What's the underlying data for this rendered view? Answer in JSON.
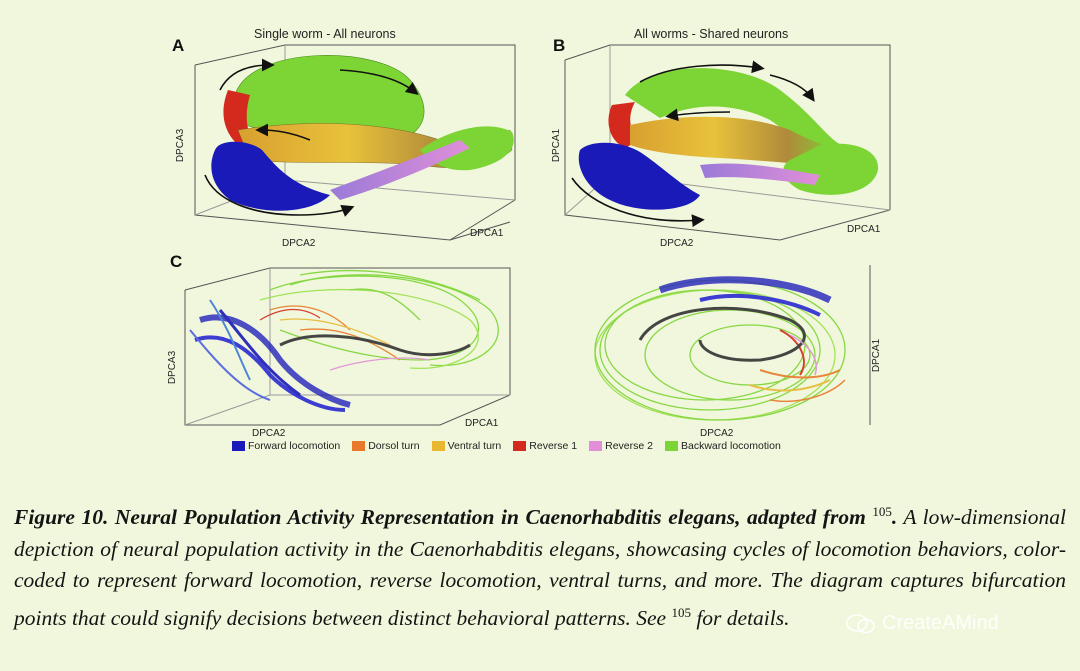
{
  "figure": {
    "panel_a": {
      "letter": "A",
      "title": "Single worm - All neurons",
      "axis_x": "DPCA2",
      "axis_y": "DPCA1",
      "axis_z": "DPCA3"
    },
    "panel_b": {
      "letter": "B",
      "title": "All worms - Shared neurons",
      "axis_x": "DPCA2",
      "axis_y": "DPCA1",
      "axis_z": "DPCA1"
    },
    "panel_c": {
      "letter": "C",
      "left_axis_x": "DPCA2",
      "left_axis_y": "DPCA1",
      "left_axis_z": "DPCA3",
      "right_axis_x": "DPCA2",
      "right_axis_z": "DPCA1"
    },
    "legend": [
      {
        "label": "Forward locomotion",
        "color": "#1a1ab8"
      },
      {
        "label": "Dorsol turn",
        "color": "#e8792a"
      },
      {
        "label": "Ventral turn",
        "color": "#e8b833"
      },
      {
        "label": "Reverse 1",
        "color": "#d42a1e"
      },
      {
        "label": "Reverse 2",
        "color": "#e08fd8"
      },
      {
        "label": "Backward locomotion",
        "color": "#7cd435"
      }
    ]
  },
  "caption": {
    "title": "Figure 10. Neural Population Activity Representation in Caenorhabditis elegans, adapted from",
    "ref1": "105",
    "ref1_suffix": ".",
    "body": " A low-dimensional depiction of neural population activity in the Caenorhabditis elegans, showcasing cycles of locomotion behaviors, color-coded to represent forward locomotion, reverse locomotion, ventral turns, and more. The diagram captures bifurcation points that could signify decisions between distinct behavioral patterns. See ",
    "ref2": "105",
    "tail": " for details."
  },
  "watermark": {
    "text": "CreateAMind"
  }
}
